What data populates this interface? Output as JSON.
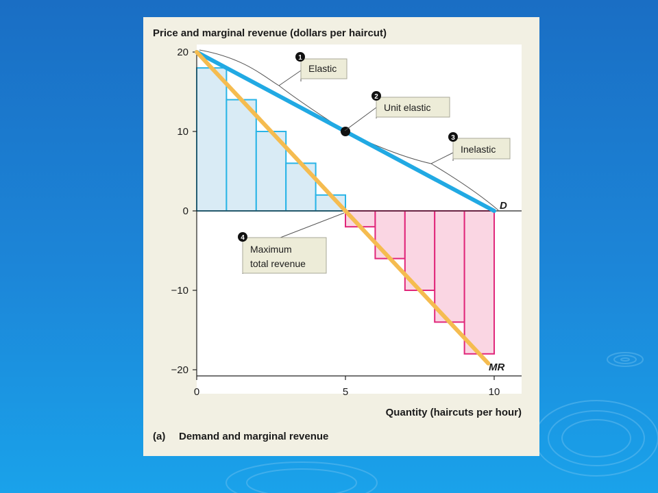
{
  "chart_data": {
    "type": "bar",
    "title": "Price and marginal revenue (dollars per haircut)",
    "xlabel": "Quantity (haircuts per hour)",
    "ylabel": "Price and marginal revenue (dollars per haircut)",
    "caption_letter": "(a)",
    "caption": "Demand and marginal revenue",
    "xlim": [
      0,
      10.9
    ],
    "ylim": [
      -20,
      20
    ],
    "x_ticks": [
      {
        "value": 0,
        "label": "0"
      },
      {
        "value": 5,
        "label": "5"
      },
      {
        "value": 10,
        "label": "10"
      }
    ],
    "y_ticks": [
      {
        "value": 20,
        "label": "20"
      },
      {
        "value": 10,
        "label": "10"
      },
      {
        "value": 0,
        "label": "0"
      },
      {
        "value": -10,
        "label": "−10"
      },
      {
        "value": -20,
        "label": "−20"
      }
    ],
    "bars": {
      "categories": [
        1,
        2,
        3,
        4,
        5,
        6,
        7,
        8,
        9,
        10
      ],
      "values": [
        18,
        14,
        10,
        6,
        2,
        -2,
        -6,
        -10,
        -14,
        -18
      ],
      "positive_color": "#29b4e6",
      "positive_fill": "#d9ebf5",
      "negative_color": "#e0267a",
      "negative_fill": "#fad6e3"
    },
    "series": [
      {
        "name": "D",
        "type": "line",
        "color": "#21a9e3",
        "points": [
          [
            0,
            20
          ],
          [
            10,
            0
          ]
        ]
      },
      {
        "name": "MR",
        "type": "line",
        "color": "#f5bc50",
        "points": [
          [
            0,
            20
          ],
          [
            9.8,
            -19.2
          ]
        ]
      }
    ],
    "unit_elastic_point": {
      "x": 5,
      "y": 10
    },
    "annotations": [
      {
        "number": "1",
        "text": "Elastic"
      },
      {
        "number": "2",
        "text": "Unit elastic"
      },
      {
        "number": "3",
        "text": "Inelastic"
      },
      {
        "number": "4",
        "line1": "Maximum",
        "line2": "total revenue"
      }
    ]
  }
}
